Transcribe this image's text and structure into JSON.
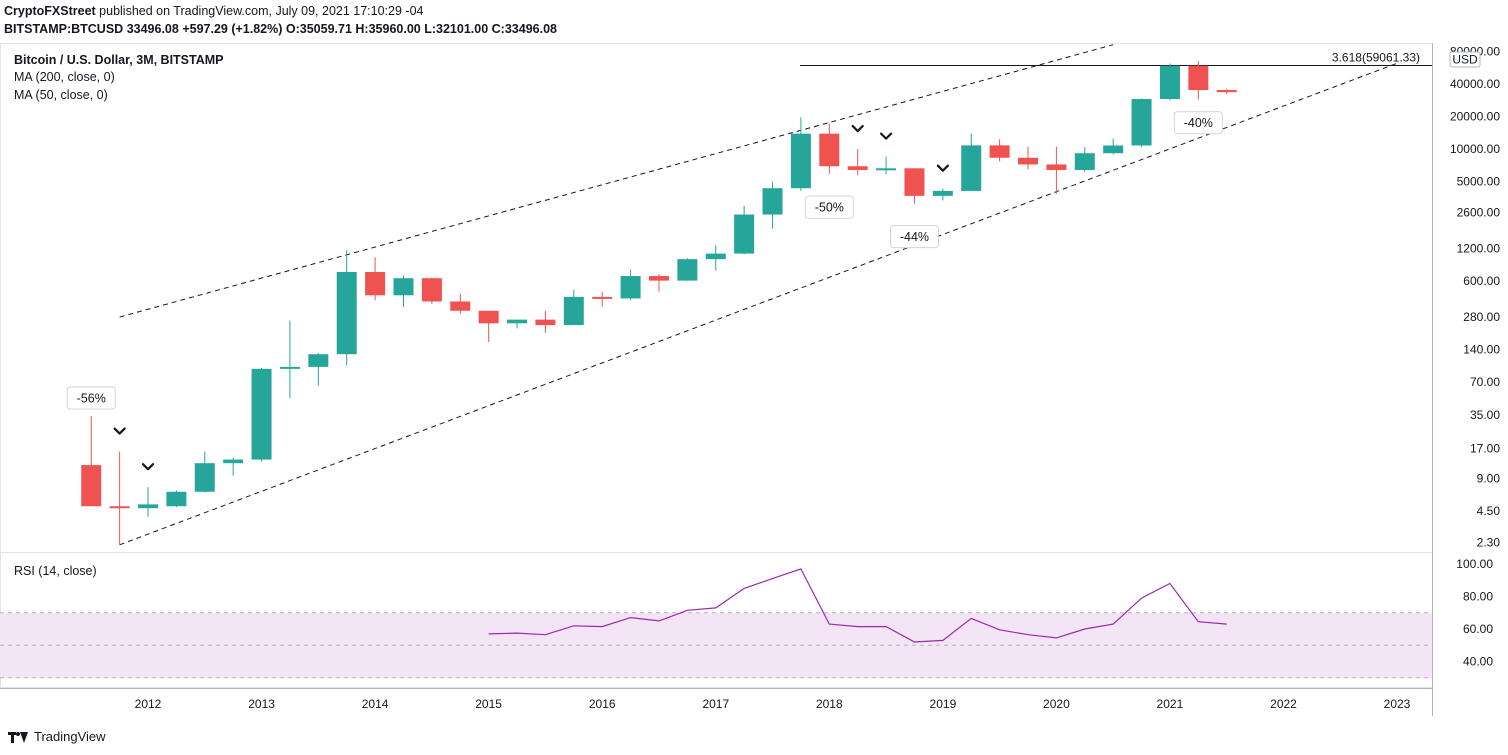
{
  "header": {
    "publisher": "CryptoFXStreet",
    "published_text": "published on TradingView.com, July 09, 2021 17:10:29 -04",
    "symbol": "BITSTAMP:BTCUSD",
    "last": "33496.08",
    "change": "+597.29 (+1.82%)",
    "open_label": "O:",
    "open": "35059.71",
    "high_label": "H:",
    "high": "35960.00",
    "low_label": "L:",
    "low": "32101.00",
    "close_label": "C:",
    "close": "33496.08"
  },
  "legend": {
    "title": "Bitcoin / U.S. Dollar, 3M, BITSTAMP",
    "ma200": "MA (200, close, 0)",
    "ma50": "MA (50, close, 0)"
  },
  "rsi_pane": {
    "label": "RSI (14, close)",
    "ticks": [
      "100.00",
      "80.00",
      "60.00",
      "40.00"
    ]
  },
  "footer": {
    "brand": "TradingView"
  },
  "colors": {
    "up": "#26a69a",
    "down": "#ef5350",
    "rsi_line": "#9c27b0",
    "rsi_band": "#f3e5f5",
    "grid": "#e0e3eb"
  },
  "chart_data": {
    "type": "candlestick",
    "title": "Bitcoin / U.S. Dollar, 3M, BITSTAMP",
    "currency_label": "USD",
    "y_scale": "log",
    "yticks": [
      80000,
      40000,
      20000,
      10000,
      5000,
      2600,
      1200,
      600,
      280,
      140,
      70,
      35,
      17,
      9,
      4.5,
      2.3
    ],
    "ytick_labels": [
      "80000.00",
      "40000.00",
      "20000.00",
      "10000.00",
      "5000.00",
      "2600.00",
      "1200.00",
      "600.00",
      "280.00",
      "140.00",
      "70.00",
      "35.00",
      "17.00",
      "9.00",
      "4.50",
      "2.30"
    ],
    "x_labels": [
      "2012",
      "2013",
      "2014",
      "2015",
      "2016",
      "2017",
      "2018",
      "2019",
      "2020",
      "2021",
      "2022",
      "2023"
    ],
    "candles": [
      {
        "t": "2011-07",
        "o": 12.0,
        "h": 34.0,
        "l": 5.0,
        "c": 5.0
      },
      {
        "t": "2011-10",
        "o": 5.0,
        "h": 16.0,
        "l": 2.2,
        "c": 4.8
      },
      {
        "t": "2012-01",
        "o": 4.8,
        "h": 7.5,
        "l": 4.0,
        "c": 5.2
      },
      {
        "t": "2012-04",
        "o": 5.0,
        "h": 7.0,
        "l": 4.9,
        "c": 6.8
      },
      {
        "t": "2012-07",
        "o": 6.8,
        "h": 16.0,
        "l": 6.7,
        "c": 12.5
      },
      {
        "t": "2012-10",
        "o": 12.5,
        "h": 14.0,
        "l": 9.6,
        "c": 13.5
      },
      {
        "t": "2013-01",
        "o": 13.5,
        "h": 95.0,
        "l": 13.0,
        "c": 93.0
      },
      {
        "t": "2013-04",
        "o": 93.0,
        "h": 260.0,
        "l": 50.0,
        "c": 97.0
      },
      {
        "t": "2013-07",
        "o": 97.0,
        "h": 130.0,
        "l": 65.0,
        "c": 127.0
      },
      {
        "t": "2013-10",
        "o": 127.0,
        "h": 1160.0,
        "l": 100.0,
        "c": 730.0
      },
      {
        "t": "2014-01",
        "o": 730.0,
        "h": 1000.0,
        "l": 400.0,
        "c": 445.0
      },
      {
        "t": "2014-04",
        "o": 445.0,
        "h": 680.0,
        "l": 345.0,
        "c": 640.0
      },
      {
        "t": "2014-07",
        "o": 640.0,
        "h": 650.0,
        "l": 370.0,
        "c": 390.0
      },
      {
        "t": "2014-10",
        "o": 390.0,
        "h": 460.0,
        "l": 300.0,
        "c": 320.0
      },
      {
        "t": "2015-01",
        "o": 320.0,
        "h": 320.0,
        "l": 165.0,
        "c": 245.0
      },
      {
        "t": "2015-04",
        "o": 245.0,
        "h": 265.0,
        "l": 220.0,
        "c": 265.0
      },
      {
        "t": "2015-07",
        "o": 265.0,
        "h": 320.0,
        "l": 200.0,
        "c": 236.0
      },
      {
        "t": "2015-10",
        "o": 236.0,
        "h": 500.0,
        "l": 236.0,
        "c": 430.0
      },
      {
        "t": "2016-01",
        "o": 430.0,
        "h": 480.0,
        "l": 350.0,
        "c": 416.0
      },
      {
        "t": "2016-04",
        "o": 416.0,
        "h": 770.0,
        "l": 400.0,
        "c": 670.0
      },
      {
        "t": "2016-07",
        "o": 670.0,
        "h": 700.0,
        "l": 480.0,
        "c": 608.0
      },
      {
        "t": "2016-10",
        "o": 608.0,
        "h": 980.0,
        "l": 605.0,
        "c": 960.0
      },
      {
        "t": "2017-01",
        "o": 960.0,
        "h": 1300.0,
        "l": 750.0,
        "c": 1080.0
      },
      {
        "t": "2017-04",
        "o": 1080.0,
        "h": 2980.0,
        "l": 1070.0,
        "c": 2480.0
      },
      {
        "t": "2017-07",
        "o": 2480.0,
        "h": 4980.0,
        "l": 1830.0,
        "c": 4340.0
      },
      {
        "t": "2017-10",
        "o": 4340.0,
        "h": 19660.0,
        "l": 4090.0,
        "c": 13860.0
      },
      {
        "t": "2018-01",
        "o": 13860.0,
        "h": 17170.0,
        "l": 5900.0,
        "c": 6930.0
      },
      {
        "t": "2018-04",
        "o": 6930.0,
        "h": 9990.0,
        "l": 5750.0,
        "c": 6390.0
      },
      {
        "t": "2018-07",
        "o": 6390.0,
        "h": 8500.0,
        "l": 5860.0,
        "c": 6630.0
      },
      {
        "t": "2018-10",
        "o": 6630.0,
        "h": 6640.0,
        "l": 3120.0,
        "c": 3690.0
      },
      {
        "t": "2019-01",
        "o": 3690.0,
        "h": 4300.0,
        "l": 3350.0,
        "c": 4100.0
      },
      {
        "t": "2019-04",
        "o": 4100.0,
        "h": 13880.0,
        "l": 4100.0,
        "c": 10800.0
      },
      {
        "t": "2019-07",
        "o": 10800.0,
        "h": 12300.0,
        "l": 7700.0,
        "c": 8300.0
      },
      {
        "t": "2019-10",
        "o": 8300.0,
        "h": 10500.0,
        "l": 6500.0,
        "c": 7200.0
      },
      {
        "t": "2020-01",
        "o": 7200.0,
        "h": 10500.0,
        "l": 3850.0,
        "c": 6400.0
      },
      {
        "t": "2020-04",
        "o": 6400.0,
        "h": 10400.0,
        "l": 6150.0,
        "c": 9140.0
      },
      {
        "t": "2020-07",
        "o": 9140.0,
        "h": 12470.0,
        "l": 8900.0,
        "c": 10780.0
      },
      {
        "t": "2020-10",
        "o": 10780.0,
        "h": 29300.0,
        "l": 10380.0,
        "c": 28990.0
      },
      {
        "t": "2021-01",
        "o": 28990.0,
        "h": 61700.0,
        "l": 28200.0,
        "c": 58800.0
      },
      {
        "t": "2021-04",
        "o": 58800.0,
        "h": 64900.0,
        "l": 28700.0,
        "c": 35040.0
      },
      {
        "t": "2021-07",
        "o": 35059.71,
        "h": 35960.0,
        "l": 32101.0,
        "c": 33496.08
      }
    ],
    "annotations": [
      {
        "text": "-56%",
        "t": "2011-07",
        "price": 50
      },
      {
        "text": "-50%",
        "t": "2018-01",
        "price": 2900
      },
      {
        "text": "-44%",
        "t": "2018-10",
        "price": 1550
      },
      {
        "text": "-40%",
        "t": "2021-04",
        "price": 17500
      }
    ],
    "peak_markers": [
      "2011-10",
      "2012-01",
      "2018-04",
      "2018-07",
      "2019-01"
    ],
    "level_line": {
      "label": "3.618(59061.33)",
      "price": 59061.33
    },
    "trendlines": [
      {
        "style": "dashed",
        "from": {
          "t": "2011-10",
          "price": 280
        },
        "to": {
          "t": "2020-07",
          "price": 92000
        }
      },
      {
        "style": "dashed",
        "from": {
          "t": "2011-10",
          "price": 2.2
        },
        "to": {
          "t": "2023-01",
          "price": 62000
        }
      }
    ],
    "rsi": {
      "name": "RSI (14, close)",
      "ylim": [
        25,
        100
      ],
      "band": [
        30,
        70
      ],
      "mid": 50,
      "t": [
        "2015-01",
        "2015-04",
        "2015-07",
        "2015-10",
        "2016-01",
        "2016-04",
        "2016-07",
        "2016-10",
        "2017-01",
        "2017-04",
        "2017-07",
        "2017-10",
        "2018-01",
        "2018-04",
        "2018-07",
        "2018-10",
        "2019-01",
        "2019-04",
        "2019-07",
        "2019-10",
        "2020-01",
        "2020-04",
        "2020-07",
        "2020-10",
        "2021-01",
        "2021-04",
        "2021-07"
      ],
      "values": [
        57,
        57.5,
        56.5,
        62,
        61.5,
        67,
        65,
        71.5,
        73,
        85,
        91,
        97,
        63,
        61.5,
        61.5,
        52,
        53,
        66.5,
        59.5,
        56.5,
        54.5,
        60,
        63,
        79,
        88,
        64.5,
        63
      ]
    }
  }
}
